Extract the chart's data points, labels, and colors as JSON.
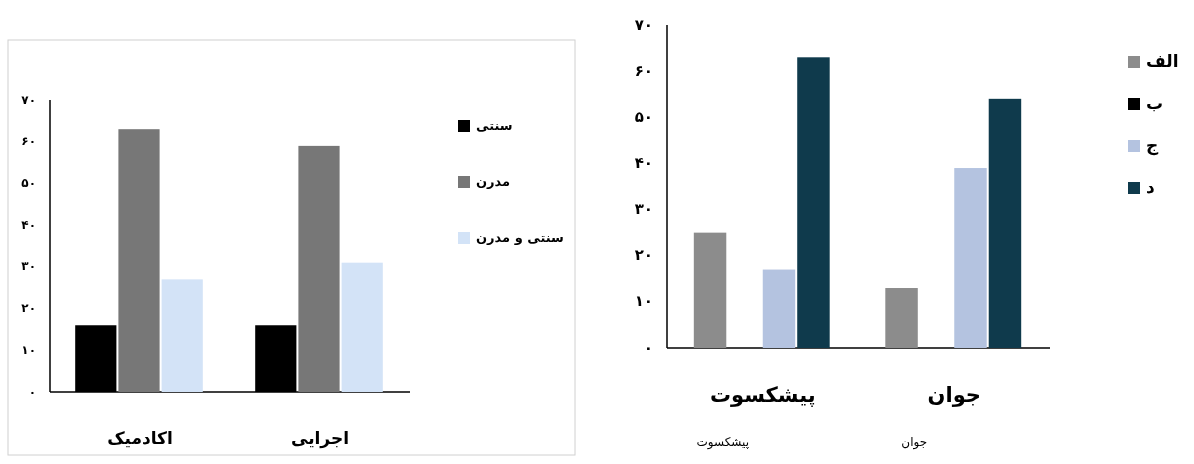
{
  "chart_data": [
    {
      "type": "bar",
      "categories": [
        "اکادمیک",
        "اجرایی"
      ],
      "series": [
        {
          "name": "سنتی",
          "color": "#000000",
          "values": [
            16,
            16
          ]
        },
        {
          "name": "مدرن",
          "color": "#777777",
          "values": [
            63,
            59
          ]
        },
        {
          "name": "سنتی و مدرن",
          "color": "#d3e3f7",
          "values": [
            27,
            31
          ]
        }
      ],
      "ylim": [
        0,
        70
      ],
      "yticks": [
        {
          "value": 0,
          "label": "۰"
        },
        {
          "value": 10,
          "label": "۱۰"
        },
        {
          "value": 20,
          "label": "۲۰"
        },
        {
          "value": 30,
          "label": "۳۰"
        },
        {
          "value": 40,
          "label": "۴۰"
        },
        {
          "value": 50,
          "label": "۵۰"
        },
        {
          "value": 60,
          "label": "۶۰"
        },
        {
          "value": 70,
          "label": "۷۰"
        }
      ],
      "legend": "right",
      "grid": false
    },
    {
      "type": "bar",
      "categories": [
        "پیشکسوت",
        "جوان"
      ],
      "series": [
        {
          "name": "الف",
          "color": "#8c8c8c",
          "values": [
            25,
            13
          ]
        },
        {
          "name": "ب",
          "color": "#000000",
          "values": [
            0,
            0
          ]
        },
        {
          "name": "ج",
          "color": "#b4c3e0",
          "values": [
            17,
            39
          ]
        },
        {
          "name": "د",
          "color": "#0f3a4c",
          "values": [
            63,
            54
          ]
        }
      ],
      "ylim": [
        0,
        70
      ],
      "yticks": [
        {
          "value": 0,
          "label": "۰"
        },
        {
          "value": 10,
          "label": "۱۰"
        },
        {
          "value": 20,
          "label": "۲۰"
        },
        {
          "value": 30,
          "label": "۳۰"
        },
        {
          "value": 40,
          "label": "۴۰"
        },
        {
          "value": 50,
          "label": "۵۰"
        },
        {
          "value": 60,
          "label": "۶۰"
        },
        {
          "value": 70,
          "label": "۷۰"
        }
      ],
      "legend": "right",
      "grid": false,
      "annotations": [
        "پیشکسوت",
        "جوان"
      ]
    }
  ]
}
